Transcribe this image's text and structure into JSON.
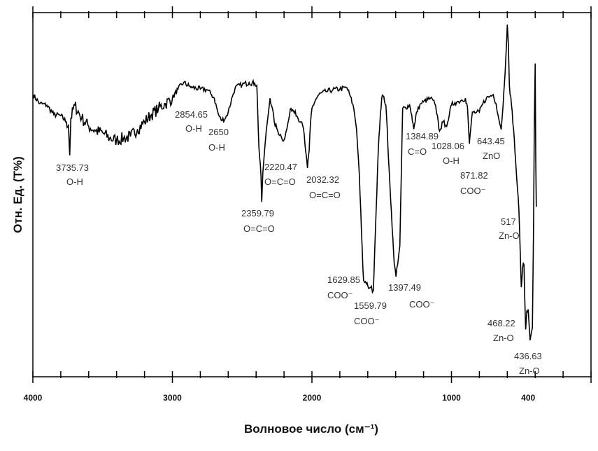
{
  "chart_data": {
    "type": "line",
    "title": "",
    "xlabel": "Волновое число (см⁻¹)",
    "ylabel": "Отн. Ед. (T%)",
    "xlim": [
      4000,
      0
    ],
    "ylim": [
      0,
      100
    ],
    "x_ticks": [
      4000,
      3000,
      2000,
      1000,
      400
    ],
    "x_tick_labels": [
      "4000",
      "3000",
      "2000",
      "1000",
      "400"
    ],
    "grid": false,
    "series": [
      {
        "name": "spectrum",
        "color": "#000000",
        "points": [
          [
            4000,
            77.5
          ],
          [
            3950,
            75
          ],
          [
            3900,
            74.6
          ],
          [
            3850,
            72
          ],
          [
            3800,
            71.7
          ],
          [
            3760,
            70
          ],
          [
            3745,
            69
          ],
          [
            3735.73,
            60.8
          ],
          [
            3728,
            71
          ],
          [
            3700,
            74.6
          ],
          [
            3650,
            71
          ],
          [
            3600,
            68.8
          ],
          [
            3550,
            67.5
          ],
          [
            3500,
            67
          ],
          [
            3450,
            65.5
          ],
          [
            3400,
            65
          ],
          [
            3350,
            65.5
          ],
          [
            3300,
            66
          ],
          [
            3250,
            68
          ],
          [
            3200,
            70
          ],
          [
            3150,
            72
          ],
          [
            3100,
            73.7
          ],
          [
            3050,
            75
          ],
          [
            3000,
            76.5
          ],
          [
            2960,
            79
          ],
          [
            2920,
            80.8
          ],
          [
            2880,
            79.8
          ],
          [
            2854.65,
            79.4
          ],
          [
            2800,
            79
          ],
          [
            2750,
            78.8
          ],
          [
            2720,
            77.5
          ],
          [
            2700,
            76.5
          ],
          [
            2670,
            72
          ],
          [
            2650,
            70.4
          ],
          [
            2620,
            71
          ],
          [
            2600,
            72.7
          ],
          [
            2570,
            77
          ],
          [
            2550,
            79.4
          ],
          [
            2500,
            80.2
          ],
          [
            2450,
            80.8
          ],
          [
            2410,
            80.6
          ],
          [
            2395,
            80
          ],
          [
            2380,
            63
          ],
          [
            2365,
            55
          ],
          [
            2359.79,
            48
          ],
          [
            2352,
            56
          ],
          [
            2340,
            62
          ],
          [
            2320,
            70
          ],
          [
            2300,
            76.5
          ],
          [
            2285,
            74
          ],
          [
            2270,
            70
          ],
          [
            2245,
            67.5
          ],
          [
            2220.47,
            66
          ],
          [
            2200,
            65
          ],
          [
            2180,
            68
          ],
          [
            2160,
            72
          ],
          [
            2150,
            73.7
          ],
          [
            2120,
            73
          ],
          [
            2100,
            71
          ],
          [
            2080,
            70
          ],
          [
            2060,
            68
          ],
          [
            2045,
            62
          ],
          [
            2032.32,
            57.3
          ],
          [
            2020,
            62
          ],
          [
            2010,
            70
          ],
          [
            2000,
            73.7
          ],
          [
            1975,
            76
          ],
          [
            1950,
            77.5
          ],
          [
            1900,
            78.3
          ],
          [
            1850,
            78.8
          ],
          [
            1800,
            79
          ],
          [
            1750,
            79.4
          ],
          [
            1725,
            77
          ],
          [
            1700,
            73.7
          ],
          [
            1680,
            68
          ],
          [
            1660,
            55.4
          ],
          [
            1645,
            40
          ],
          [
            1635,
            30
          ],
          [
            1629.85,
            26.5
          ],
          [
            1610,
            25.5
          ],
          [
            1600,
            25
          ],
          [
            1580,
            24.5
          ],
          [
            1559.79,
            23.7
          ],
          [
            1550,
            35
          ],
          [
            1540,
            45.8
          ],
          [
            1525,
            62
          ],
          [
            1510,
            72
          ],
          [
            1500,
            76.5
          ],
          [
            1485,
            77
          ],
          [
            1470,
            74.6
          ],
          [
            1460,
            68
          ],
          [
            1450,
            59
          ],
          [
            1435,
            48
          ],
          [
            1420,
            38
          ],
          [
            1410,
            31
          ],
          [
            1397.49,
            27.5
          ],
          [
            1385,
            31
          ],
          [
            1370,
            36
          ],
          [
            1360,
            55
          ],
          [
            1350,
            73.7
          ],
          [
            1330,
            74
          ],
          [
            1300,
            74.6
          ],
          [
            1285,
            72
          ],
          [
            1270,
            68
          ],
          [
            1260,
            70
          ],
          [
            1250,
            72.7
          ],
          [
            1220,
            75
          ],
          [
            1200,
            75.5
          ],
          [
            1150,
            76.5
          ],
          [
            1120,
            75
          ],
          [
            1100,
            71.7
          ],
          [
            1090,
            68
          ],
          [
            1080,
            68
          ],
          [
            1060,
            70
          ],
          [
            1040,
            69
          ],
          [
            1028.06,
            69.8
          ],
          [
            1015,
            72
          ],
          [
            1000,
            74.6
          ],
          [
            975,
            75.3
          ],
          [
            950,
            75.6
          ],
          [
            925,
            76
          ],
          [
            900,
            76.5
          ],
          [
            885,
            74
          ],
          [
            871.82,
            64
          ],
          [
            862,
            68
          ],
          [
            850,
            72.7
          ],
          [
            825,
            72.5
          ],
          [
            800,
            72.7
          ],
          [
            775,
            75
          ],
          [
            750,
            76.5
          ],
          [
            725,
            77
          ],
          [
            700,
            77.5
          ],
          [
            680,
            75
          ],
          [
            660,
            70.7
          ],
          [
            650,
            69
          ],
          [
            643.45,
            67.9
          ],
          [
            635,
            72
          ],
          [
            620,
            80.8
          ],
          [
            610,
            88
          ],
          [
            600,
            96.7
          ],
          [
            593,
            92
          ],
          [
            585,
            80
          ],
          [
            570,
            74.6
          ],
          [
            555,
            68
          ],
          [
            540,
            59
          ],
          [
            528,
            52
          ],
          [
            517,
            45.8
          ],
          [
            508,
            35
          ],
          [
            500,
            24.6
          ],
          [
            490,
            30
          ],
          [
            480,
            30.8
          ],
          [
            475,
            22
          ],
          [
            468.22,
            13
          ],
          [
            460,
            18
          ],
          [
            450,
            18.5
          ],
          [
            443,
            14
          ],
          [
            436.63,
            10
          ],
          [
            428,
            12
          ],
          [
            420,
            13.5
          ],
          [
            412,
            40
          ],
          [
            406,
            70
          ],
          [
            400,
            86
          ],
          [
            396,
            60
          ],
          [
            392,
            46.7
          ]
        ]
      }
    ],
    "annotations": [
      {
        "value": "3735.73",
        "group": "O-H"
      },
      {
        "value": "2854.65",
        "group": "O-H"
      },
      {
        "value": "2650",
        "group": "O-H"
      },
      {
        "value": "2359.79",
        "group": "O=C=O"
      },
      {
        "value": "2220.47",
        "group": "O=C=O"
      },
      {
        "value": "2032.32",
        "group": "O=C=O"
      },
      {
        "value": "1629.85",
        "group": "COO⁻"
      },
      {
        "value": "1559.79",
        "group": "COO⁻"
      },
      {
        "value": "1397.49",
        "group": "COO⁻"
      },
      {
        "value": "1384.89",
        "group": "C=O"
      },
      {
        "value": "1028.06",
        "group": "O-H"
      },
      {
        "value": "871.82",
        "group": "COO⁻"
      },
      {
        "value": "643.45",
        "group": "ZnO"
      },
      {
        "value": "517",
        "group": "Zn-O"
      },
      {
        "value": "468.22",
        "group": "Zn-O"
      },
      {
        "value": "436.63",
        "group": "Zn-O"
      }
    ]
  }
}
